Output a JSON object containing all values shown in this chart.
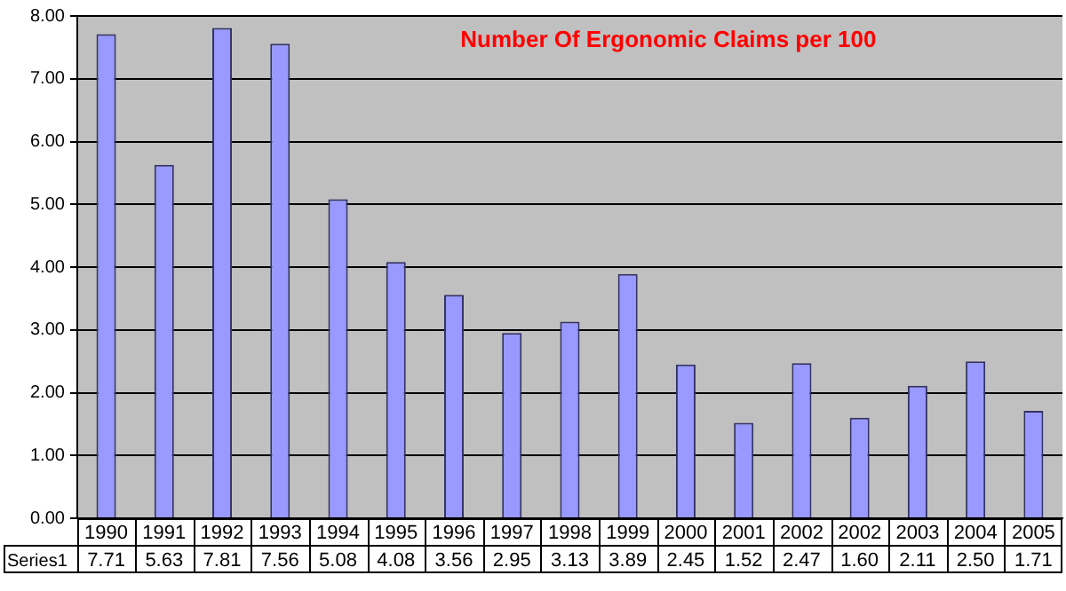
{
  "chart_data": {
    "type": "bar",
    "title": "Number Of Ergonomic Claims per 100",
    "categories": [
      "1990",
      "1991",
      "1992",
      "1993",
      "1994",
      "1995",
      "1996",
      "1997",
      "1998",
      "1999",
      "2000",
      "2001",
      "2002",
      "2002",
      "2003",
      "2004",
      "2005"
    ],
    "series": [
      {
        "name": "Series1",
        "color": "#9999ff",
        "values": [
          7.71,
          5.63,
          7.81,
          7.56,
          5.08,
          4.08,
          3.56,
          2.95,
          3.13,
          3.89,
          2.45,
          1.52,
          2.47,
          1.6,
          2.11,
          2.5,
          1.71
        ],
        "value_labels": [
          "7.71",
          "5.63",
          "7.81",
          "7.56",
          "5.08",
          "4.08",
          "3.56",
          "2.95",
          "3.13",
          "3.89",
          "2.45",
          "1.52",
          "2.47",
          "1.60",
          "2.11",
          "2.50",
          "1.71"
        ]
      }
    ],
    "ylim": [
      0,
      8
    ],
    "yticks": [
      {
        "value": 0,
        "label": "0.00"
      },
      {
        "value": 1,
        "label": "1.00"
      },
      {
        "value": 2,
        "label": "2.00"
      },
      {
        "value": 3,
        "label": "3.00"
      },
      {
        "value": 4,
        "label": "4.00"
      },
      {
        "value": 5,
        "label": "5.00"
      },
      {
        "value": 6,
        "label": "6.00"
      },
      {
        "value": 7,
        "label": "7.00"
      },
      {
        "value": 8,
        "label": "8.00"
      }
    ],
    "grid": "y",
    "legend": false
  }
}
